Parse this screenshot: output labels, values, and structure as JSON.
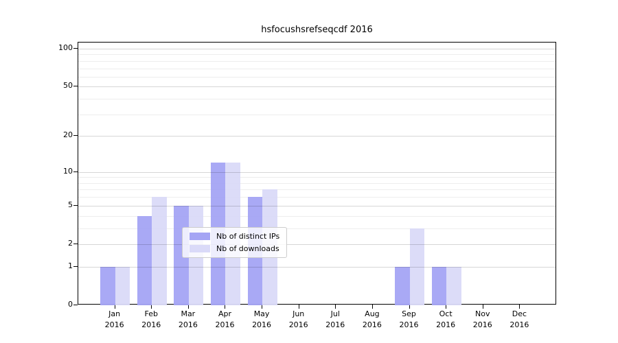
{
  "chart_data": {
    "type": "bar",
    "title": "hsfocushsrefseqcdf 2016",
    "categories": [
      "Jan",
      "Feb",
      "Mar",
      "Apr",
      "May",
      "Jun",
      "Jul",
      "Aug",
      "Sep",
      "Oct",
      "Nov",
      "Dec"
    ],
    "category_sublabel": "2016",
    "series": [
      {
        "name": "Nb of distinct IPs",
        "color": "#a4a4f4",
        "values": [
          1,
          4,
          5,
          12,
          6,
          0,
          0,
          0,
          1,
          1,
          0,
          0
        ]
      },
      {
        "name": "Nb of downloads",
        "color": "#dadaf8",
        "values": [
          1,
          6,
          5,
          12,
          7,
          0,
          0,
          0,
          3,
          1,
          0,
          0
        ]
      }
    ],
    "xlabel": "",
    "ylabel": "",
    "y_axis": {
      "scale": "log1p",
      "tick_values": [
        0,
        1,
        2,
        5,
        10,
        20,
        50,
        100
      ],
      "minor_gridline_values": [
        3,
        4,
        6,
        7,
        8,
        9,
        30,
        40,
        60,
        70,
        80,
        90
      ],
      "ylim": [
        0,
        112
      ]
    },
    "grid": {
      "major_color": "#d6d6d6",
      "minor_color": "#ededed",
      "grid_on": true
    },
    "legend": {
      "position": "bottom-center",
      "entries": [
        "Nb of distinct IPs",
        "Nb of downloads"
      ]
    }
  }
}
